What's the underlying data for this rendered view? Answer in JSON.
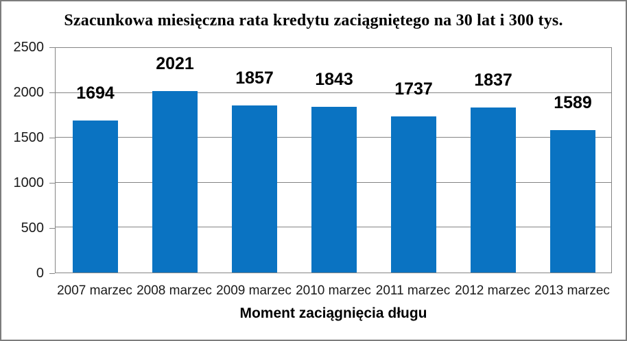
{
  "chart_data": {
    "type": "bar",
    "title": "Szacunkowa miesięczna rata kredytu zaciągniętego na 30 lat i 300 tys.",
    "xlabel": "Moment zaciągnięcia długu",
    "ylabel": "",
    "categories": [
      "2007 marzec",
      "2008 marzec",
      "2009 marzec",
      "2010 marzec",
      "2011 marzec",
      "2012 marzec",
      "2013 marzec"
    ],
    "values": [
      1694,
      2021,
      1857,
      1843,
      1737,
      1837,
      1589
    ],
    "data_labels": [
      "1694",
      "2021",
      "1857",
      "1843",
      "1737",
      "1837",
      "1589"
    ],
    "ylim": [
      0,
      2500
    ],
    "yticks": [
      "0",
      "500",
      "1000",
      "1500",
      "2000",
      "2500"
    ],
    "grid": "horizontal gridlines on",
    "legend_position": "none",
    "colors": {
      "bar_fill": "#0a73c2",
      "gridline": "#848484",
      "plot_border": "#848484",
      "outer_border": "#7d7d7d",
      "text": "#000000",
      "tick_text": "#1a1a1a",
      "background": "#ffffff"
    }
  }
}
